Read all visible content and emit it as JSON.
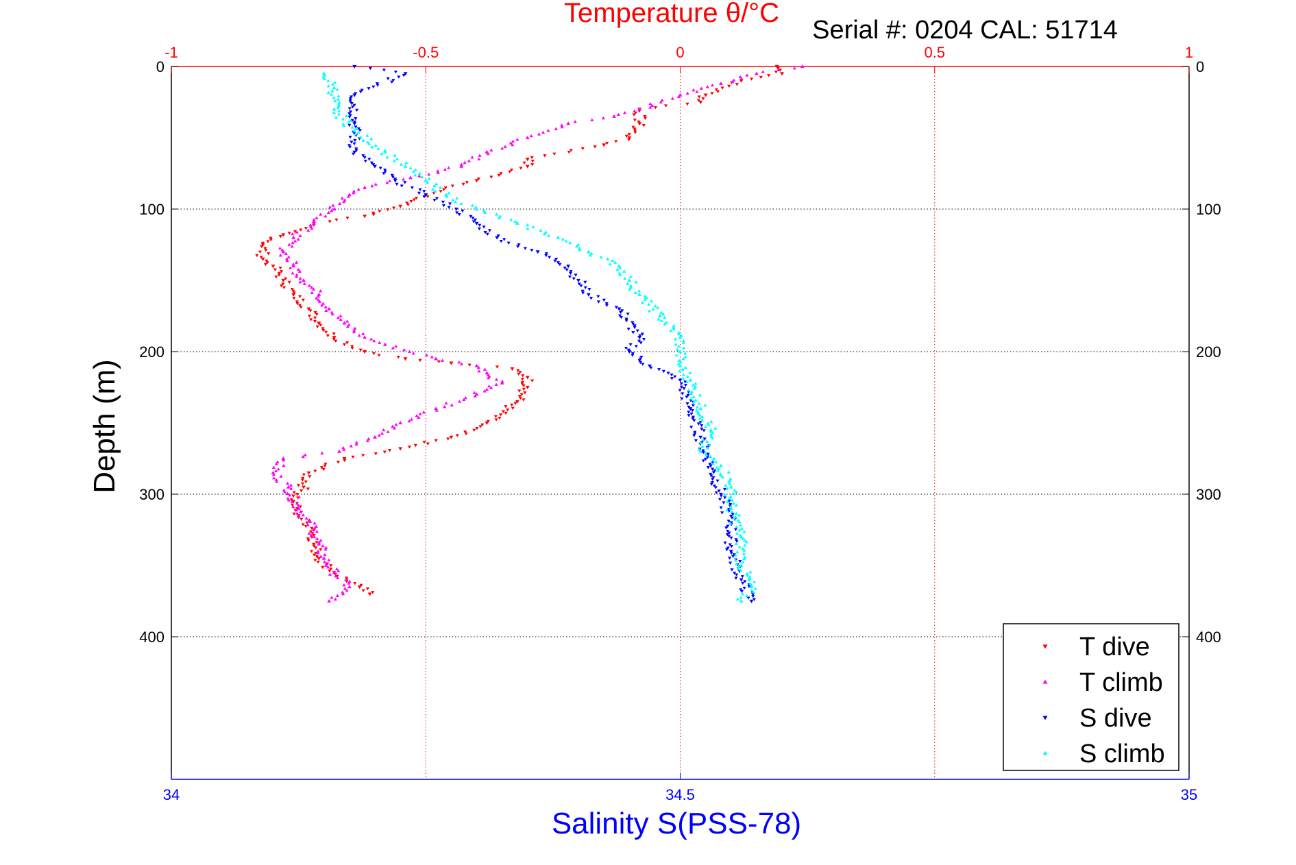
{
  "chart_data": {
    "type": "scatter",
    "title": "Temperature θ/°C",
    "subtitle": "Serial #: 0204  CAL: 51714",
    "ylabel": "Depth (m)",
    "xlabel_bottom": "Salinity S(PSS-78)",
    "xlabel_top": "Temperature θ/°C",
    "ylim": [
      0,
      500
    ],
    "y_inverted": true,
    "y_ticks": [
      0,
      100,
      200,
      300,
      400
    ],
    "x_top_lim": [
      -1,
      1
    ],
    "x_top_ticks": [
      -1,
      -0.5,
      0,
      0.5,
      1
    ],
    "x_bottom_lim": [
      34,
      35
    ],
    "x_bottom_ticks": [
      34,
      34.5,
      35
    ],
    "grid": true,
    "legend_position": "bottom-right",
    "colors": {
      "temperature_axis": "#ff0000",
      "salinity_axis": "#0000ff",
      "grid": "#000000"
    },
    "series": [
      {
        "name": "T dive",
        "axis": "temperature",
        "marker": "triangle-down",
        "color": "#ff0000",
        "points": [
          [
            0.19,
            0
          ],
          [
            0.2,
            5
          ],
          [
            0.12,
            10
          ],
          [
            0.05,
            20
          ],
          [
            0.04,
            25
          ],
          [
            -0.08,
            30
          ],
          [
            -0.08,
            40
          ],
          [
            -0.1,
            50
          ],
          [
            -0.15,
            55
          ],
          [
            -0.3,
            65
          ],
          [
            -0.3,
            70
          ],
          [
            -0.4,
            80
          ],
          [
            -0.5,
            90
          ],
          [
            -0.55,
            98
          ],
          [
            -0.62,
            105
          ],
          [
            -0.72,
            110
          ],
          [
            -0.78,
            118
          ],
          [
            -0.82,
            125
          ],
          [
            -0.82,
            135
          ],
          [
            -0.8,
            140
          ],
          [
            -0.78,
            150
          ],
          [
            -0.76,
            160
          ],
          [
            -0.73,
            170
          ],
          [
            -0.71,
            180
          ],
          [
            -0.68,
            190
          ],
          [
            -0.62,
            200
          ],
          [
            -0.54,
            205
          ],
          [
            -0.45,
            208
          ],
          [
            -0.33,
            212
          ],
          [
            -0.3,
            218
          ],
          [
            -0.3,
            225
          ],
          [
            -0.32,
            235
          ],
          [
            -0.38,
            250
          ],
          [
            -0.45,
            260
          ],
          [
            -0.55,
            268
          ],
          [
            -0.66,
            275
          ],
          [
            -0.73,
            285
          ],
          [
            -0.74,
            295
          ],
          [
            -0.76,
            305
          ],
          [
            -0.75,
            315
          ],
          [
            -0.72,
            325
          ],
          [
            -0.72,
            335
          ],
          [
            -0.71,
            345
          ],
          [
            -0.68,
            355
          ],
          [
            -0.63,
            365
          ],
          [
            -0.61,
            370
          ]
        ]
      },
      {
        "name": "T climb",
        "axis": "temperature",
        "marker": "triangle-up",
        "color": "#ff00ff",
        "points": [
          [
            0.24,
            0
          ],
          [
            0.15,
            5
          ],
          [
            0.08,
            12
          ],
          [
            0,
            20
          ],
          [
            -0.08,
            30
          ],
          [
            -0.13,
            35
          ],
          [
            -0.22,
            40
          ],
          [
            -0.3,
            50
          ],
          [
            -0.38,
            60
          ],
          [
            -0.43,
            70
          ],
          [
            -0.53,
            78
          ],
          [
            -0.62,
            85
          ],
          [
            -0.65,
            90
          ],
          [
            -0.68,
            100
          ],
          [
            -0.72,
            110
          ],
          [
            -0.76,
            120
          ],
          [
            -0.78,
            130
          ],
          [
            -0.76,
            140
          ],
          [
            -0.74,
            150
          ],
          [
            -0.71,
            160
          ],
          [
            -0.69,
            170
          ],
          [
            -0.66,
            180
          ],
          [
            -0.62,
            190
          ],
          [
            -0.58,
            195
          ],
          [
            -0.48,
            205
          ],
          [
            -0.4,
            210
          ],
          [
            -0.38,
            215
          ],
          [
            -0.35,
            222
          ],
          [
            -0.4,
            230
          ],
          [
            -0.48,
            240
          ],
          [
            -0.55,
            250
          ],
          [
            -0.6,
            260
          ],
          [
            -0.67,
            270
          ],
          [
            -0.78,
            275
          ],
          [
            -0.8,
            285
          ],
          [
            -0.77,
            295
          ],
          [
            -0.75,
            310
          ],
          [
            -0.72,
            325
          ],
          [
            -0.71,
            335
          ],
          [
            -0.7,
            345
          ],
          [
            -0.68,
            355
          ],
          [
            -0.65,
            365
          ],
          [
            -0.69,
            375
          ]
        ]
      },
      {
        "name": "S dive",
        "axis": "salinity",
        "marker": "triangle-down",
        "color": "#0000ff",
        "points": [
          [
            34.18,
            0
          ],
          [
            34.23,
            5
          ],
          [
            34.18,
            20
          ],
          [
            34.18,
            40
          ],
          [
            34.18,
            60
          ],
          [
            34.2,
            70
          ],
          [
            34.22,
            80
          ],
          [
            34.25,
            90
          ],
          [
            34.28,
            100
          ],
          [
            34.3,
            110
          ],
          [
            34.32,
            120
          ],
          [
            34.36,
            130
          ],
          [
            34.39,
            140
          ],
          [
            34.4,
            150
          ],
          [
            34.41,
            160
          ],
          [
            34.44,
            170
          ],
          [
            34.46,
            190
          ],
          [
            34.45,
            200
          ],
          [
            34.47,
            210
          ],
          [
            34.5,
            220
          ],
          [
            34.51,
            240
          ],
          [
            34.52,
            260
          ],
          [
            34.53,
            280
          ],
          [
            34.54,
            300
          ],
          [
            34.55,
            320
          ],
          [
            34.55,
            340
          ],
          [
            34.56,
            360
          ],
          [
            34.57,
            375
          ]
        ]
      },
      {
        "name": "S climb",
        "axis": "salinity",
        "marker": "triangle-up",
        "color": "#00ffff",
        "points": [
          [
            34.15,
            5
          ],
          [
            34.16,
            15
          ],
          [
            34.16,
            30
          ],
          [
            34.18,
            45
          ],
          [
            34.21,
            60
          ],
          [
            34.23,
            70
          ],
          [
            34.25,
            80
          ],
          [
            34.27,
            90
          ],
          [
            34.3,
            100
          ],
          [
            34.34,
            110
          ],
          [
            34.38,
            120
          ],
          [
            34.41,
            130
          ],
          [
            34.44,
            140
          ],
          [
            34.45,
            150
          ],
          [
            34.46,
            160
          ],
          [
            34.48,
            175
          ],
          [
            34.5,
            190
          ],
          [
            34.5,
            200
          ],
          [
            34.5,
            210
          ],
          [
            34.51,
            220
          ],
          [
            34.52,
            240
          ],
          [
            34.53,
            255
          ],
          [
            34.52,
            270
          ],
          [
            34.54,
            280
          ],
          [
            34.55,
            295
          ],
          [
            34.55,
            310
          ],
          [
            34.56,
            330
          ],
          [
            34.56,
            350
          ],
          [
            34.57,
            365
          ],
          [
            34.56,
            375
          ]
        ]
      }
    ]
  }
}
